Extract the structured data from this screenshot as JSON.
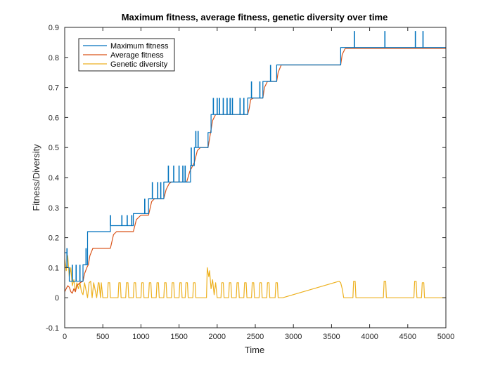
{
  "chart_data": {
    "type": "line",
    "title": "Maximum fitness, average fitness, genetic diversity over time",
    "xlabel": "Time",
    "ylabel": "Fitness/Diversity",
    "xlim": [
      0,
      5000
    ],
    "ylim": [
      -0.1,
      0.9
    ],
    "xticks": [
      "0",
      "500",
      "1000",
      "1500",
      "2000",
      "2500",
      "3000",
      "3500",
      "4000",
      "4500",
      "5000"
    ],
    "yticks": [
      "-0.1",
      "0",
      "0.1",
      "0.2",
      "0.3",
      "0.4",
      "0.5",
      "0.6",
      "0.7",
      "0.8",
      "0.9"
    ],
    "xtick_values": [
      0,
      500,
      1000,
      1500,
      2000,
      2500,
      3000,
      3500,
      4000,
      4500,
      5000
    ],
    "ytick_values": [
      -0.1,
      0,
      0.1,
      0.2,
      0.3,
      0.4,
      0.5,
      0.6,
      0.7,
      0.8,
      0.9
    ],
    "grid": false,
    "legend_position": "top-left",
    "series": [
      {
        "name": "Maximum fitness",
        "color": "#0072BD",
        "x": [
          0,
          30,
          30,
          60,
          60,
          240,
          240,
          300,
          300,
          600,
          600,
          900,
          900,
          1100,
          1100,
          1300,
          1300,
          1600,
          1600,
          1650,
          1650,
          1700,
          1700,
          1880,
          1880,
          1920,
          1920,
          2400,
          2400,
          2600,
          2600,
          2780,
          2780,
          3620,
          3620,
          5000
        ],
        "y": [
          0.15,
          0.15,
          0.1,
          0.1,
          0.055,
          0.055,
          0.11,
          0.11,
          0.22,
          0.22,
          0.24,
          0.24,
          0.28,
          0.28,
          0.33,
          0.33,
          0.385,
          0.385,
          0.385,
          0.385,
          0.44,
          0.44,
          0.5,
          0.5,
          0.55,
          0.55,
          0.61,
          0.61,
          0.665,
          0.665,
          0.72,
          0.72,
          0.775,
          0.775,
          0.833,
          0.833
        ],
        "spikes": [
          {
            "x": 30,
            "y": 0.165
          },
          {
            "x": 100,
            "y": 0.11
          },
          {
            "x": 150,
            "y": 0.11
          },
          {
            "x": 200,
            "y": 0.11
          },
          {
            "x": 280,
            "y": 0.165
          },
          {
            "x": 380,
            "y": 0.22
          },
          {
            "x": 420,
            "y": 0.22
          },
          {
            "x": 450,
            "y": 0.22
          },
          {
            "x": 600,
            "y": 0.275
          },
          {
            "x": 750,
            "y": 0.275
          },
          {
            "x": 820,
            "y": 0.275
          },
          {
            "x": 880,
            "y": 0.275
          },
          {
            "x": 1050,
            "y": 0.33
          },
          {
            "x": 1150,
            "y": 0.385
          },
          {
            "x": 1220,
            "y": 0.385
          },
          {
            "x": 1260,
            "y": 0.385
          },
          {
            "x": 1360,
            "y": 0.44
          },
          {
            "x": 1430,
            "y": 0.44
          },
          {
            "x": 1500,
            "y": 0.44
          },
          {
            "x": 1550,
            "y": 0.44
          },
          {
            "x": 1580,
            "y": 0.44
          },
          {
            "x": 1660,
            "y": 0.5
          },
          {
            "x": 1720,
            "y": 0.555
          },
          {
            "x": 1750,
            "y": 0.555
          },
          {
            "x": 1950,
            "y": 0.665
          },
          {
            "x": 2000,
            "y": 0.665
          },
          {
            "x": 2030,
            "y": 0.665
          },
          {
            "x": 2080,
            "y": 0.665
          },
          {
            "x": 2130,
            "y": 0.665
          },
          {
            "x": 2170,
            "y": 0.665
          },
          {
            "x": 2200,
            "y": 0.665
          },
          {
            "x": 2300,
            "y": 0.665
          },
          {
            "x": 2350,
            "y": 0.665
          },
          {
            "x": 2450,
            "y": 0.72
          },
          {
            "x": 2560,
            "y": 0.72
          },
          {
            "x": 2650,
            "y": 0.72
          },
          {
            "x": 2700,
            "y": 0.775
          },
          {
            "x": 3800,
            "y": 0.888
          },
          {
            "x": 4200,
            "y": 0.888
          },
          {
            "x": 4600,
            "y": 0.888
          },
          {
            "x": 4700,
            "y": 0.888
          }
        ]
      },
      {
        "name": "Average fitness",
        "color": "#D95319",
        "x": [
          0,
          40,
          60,
          80,
          100,
          120,
          140,
          160,
          200,
          240,
          260,
          290,
          310,
          330,
          370,
          410,
          450,
          600,
          640,
          680,
          900,
          940,
          1000,
          1100,
          1140,
          1180,
          1300,
          1330,
          1370,
          1400,
          1600,
          1640,
          1680,
          1700,
          1740,
          1780,
          1880,
          1900,
          1920,
          1940,
          1980,
          2400,
          2420,
          2440,
          2480,
          2600,
          2620,
          2660,
          2780,
          2800,
          2840,
          3620,
          3640,
          3680,
          5000
        ],
        "y": [
          0.02,
          0.04,
          0.035,
          0.02,
          0.015,
          0.03,
          0.02,
          0.04,
          0.05,
          0.055,
          0.08,
          0.1,
          0.11,
          0.14,
          0.165,
          0.165,
          0.165,
          0.165,
          0.21,
          0.22,
          0.22,
          0.26,
          0.275,
          0.275,
          0.32,
          0.33,
          0.33,
          0.36,
          0.38,
          0.385,
          0.385,
          0.42,
          0.44,
          0.45,
          0.49,
          0.5,
          0.5,
          0.53,
          0.56,
          0.59,
          0.61,
          0.61,
          0.63,
          0.66,
          0.665,
          0.665,
          0.7,
          0.72,
          0.72,
          0.75,
          0.775,
          0.775,
          0.81,
          0.83,
          0.83
        ]
      },
      {
        "name": "Genetic diversity",
        "color": "#EDB120",
        "x": [
          0,
          20,
          40,
          60,
          80,
          100,
          120,
          140,
          160,
          180,
          200,
          220,
          240,
          260,
          300,
          320,
          340,
          360,
          380,
          420,
          440,
          450,
          470,
          480,
          500,
          560,
          570,
          590,
          600,
          620,
          700,
          710,
          730,
          740,
          760,
          800,
          810,
          830,
          840,
          860,
          900,
          910,
          930,
          940,
          960,
          1000,
          1010,
          1030,
          1040,
          1060,
          1100,
          1110,
          1130,
          1140,
          1160,
          1200,
          1210,
          1230,
          1240,
          1260,
          1300,
          1310,
          1330,
          1340,
          1360,
          1400,
          1410,
          1430,
          1440,
          1460,
          1500,
          1510,
          1530,
          1540,
          1560,
          1580,
          1590,
          1610,
          1620,
          1640,
          1680,
          1690,
          1710,
          1720,
          1740,
          1860,
          1870,
          1890,
          1900,
          1920,
          1940,
          1960,
          1980,
          2000,
          2020,
          2050,
          2060,
          2080,
          2090,
          2110,
          2150,
          2160,
          2180,
          2190,
          2210,
          2250,
          2260,
          2280,
          2290,
          2310,
          2350,
          2360,
          2380,
          2390,
          2410,
          2450,
          2460,
          2480,
          2490,
          2510,
          2550,
          2560,
          2580,
          2590,
          2610,
          2650,
          2660,
          2680,
          2690,
          2710,
          2760,
          2770,
          2790,
          2800,
          2820,
          2860,
          3600,
          3620,
          3640,
          3660,
          3700,
          3780,
          3790,
          3810,
          3820,
          3840,
          4180,
          4190,
          4210,
          4220,
          4240,
          4580,
          4590,
          4610,
          4620,
          4640,
          4680,
          4690,
          4710,
          4720,
          4740,
          5000
        ],
        "y": [
          0.13,
          0.09,
          0.14,
          0.07,
          0.1,
          0.04,
          0.06,
          0.02,
          0.05,
          0.03,
          0.05,
          0.02,
          0.01,
          0.05,
          0,
          0.05,
          0.055,
          0,
          0.05,
          0,
          0.05,
          0.05,
          0,
          0.05,
          0,
          0,
          0.05,
          0.05,
          0,
          0,
          0,
          0.05,
          0.05,
          0,
          0,
          0,
          0.05,
          0.05,
          0,
          0,
          0,
          0.05,
          0.05,
          0,
          0,
          0,
          0.05,
          0.05,
          0,
          0,
          0,
          0.05,
          0.05,
          0,
          0,
          0,
          0.05,
          0.05,
          0,
          0,
          0,
          0.05,
          0.05,
          0,
          0,
          0,
          0.05,
          0.05,
          0,
          0,
          0,
          0.05,
          0.05,
          0,
          0,
          0,
          0.05,
          0.05,
          0,
          0,
          0,
          0.05,
          0.05,
          0,
          0,
          0,
          0.1,
          0.07,
          0.09,
          0.03,
          0.06,
          0.01,
          0.05,
          0,
          0,
          0,
          0.05,
          0.05,
          0,
          0,
          0,
          0.05,
          0.05,
          0,
          0,
          0,
          0.05,
          0.05,
          0,
          0,
          0,
          0.05,
          0.05,
          0,
          0,
          0,
          0.05,
          0.05,
          0,
          0,
          0,
          0.05,
          0.05,
          0,
          0,
          0,
          0.05,
          0.05,
          0,
          0,
          0,
          0.05,
          0.05,
          0,
          0,
          0,
          0.055,
          0.05,
          0.03,
          0,
          0,
          0,
          0.055,
          0.055,
          0,
          0,
          0,
          0.055,
          0.055,
          0,
          0,
          0,
          0.055,
          0.055,
          0,
          0,
          0,
          0.05,
          0.05,
          0,
          0,
          0
        ]
      }
    ]
  }
}
